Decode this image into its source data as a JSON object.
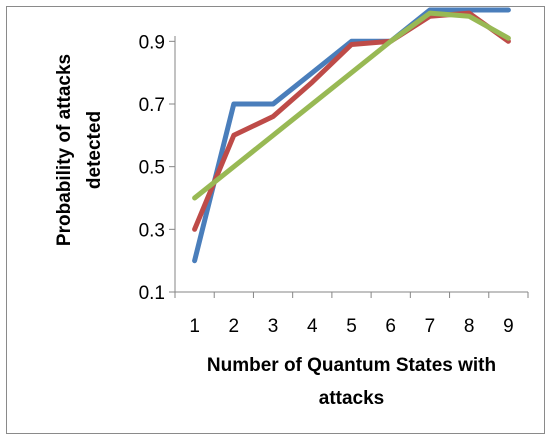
{
  "chart_data": {
    "type": "line",
    "title": "",
    "xlabel": [
      "Number of Quantum States with",
      "attacks"
    ],
    "ylabel": [
      "Probability of  attacks",
      "detected"
    ],
    "x": [
      1,
      2,
      3,
      4,
      5,
      6,
      7,
      8,
      9
    ],
    "x_tick_labels": [
      "1",
      "2",
      "3",
      "4",
      "5",
      "6",
      "7",
      "8",
      "9"
    ],
    "y_tick_labels": [
      "0.1",
      "0.3",
      "0.5",
      "0.7",
      "0.9"
    ],
    "y_ticks": [
      0.1,
      0.3,
      0.5,
      0.7,
      0.9
    ],
    "ylim": [
      0.1,
      1.0
    ],
    "grid": false,
    "legend": "none",
    "series": [
      {
        "color": "#4a7ebb",
        "values": [
          0.2,
          0.7,
          0.7,
          0.8,
          0.9,
          0.9,
          1.0,
          1.0,
          1.0
        ]
      },
      {
        "color": "#be4b48",
        "values": [
          0.3,
          0.6,
          0.66,
          0.77,
          0.89,
          0.9,
          0.98,
          0.99,
          0.9
        ]
      },
      {
        "color": "#98b954",
        "values": [
          0.4,
          0.5,
          0.6,
          0.7,
          0.8,
          0.9,
          0.99,
          0.98,
          0.91
        ]
      }
    ]
  }
}
